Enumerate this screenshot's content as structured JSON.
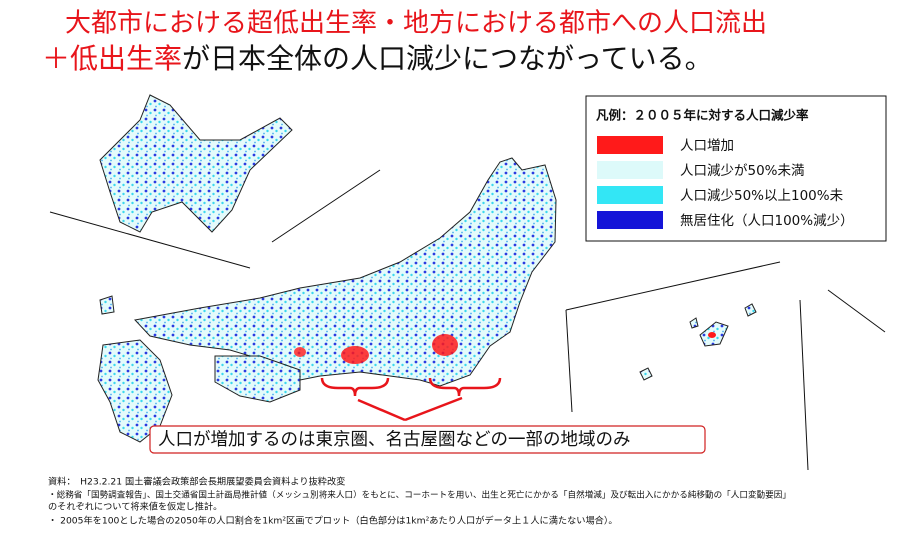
{
  "title": {
    "line1": "大都市における超低出生率・地方における都市への人口流出",
    "line2_highlight": "＋低出生率",
    "line2_rest": "が日本全体の人口減少につながっている。"
  },
  "legend": {
    "title": "凡例：２００５年に対する人口減少率",
    "items": [
      {
        "label": "人口増加",
        "color": "#ff1a1a"
      },
      {
        "label": "人口減少が50%未満",
        "color": "#ddfafa"
      },
      {
        "label": "人口減少50%以上100%未",
        "color": "#33e6f5"
      },
      {
        "label": "無居住化（人口100%減少）",
        "color": "#1515d8"
      }
    ]
  },
  "callout": "人口が増加するのは東京圏、名古屋圏などの一部の地域のみ",
  "sources": [
    "資料：　H23.2.21 国土審議会政策部会長期展望委員会資料より抜粋改変",
    "・総務省「国勢調査報告」、国土交通省国土計画局推計値（メッシュ別将来人口）をもとに、コーホートを用い、出生と死亡にかかる「自然増減」及び転出入にかかる純移動の「人口変動要因」",
    "のそれぞれについて将来値を仮定し推計。",
    "・ 2005年を100とした場合の2050年の人口割合を1km²区画でプロット（白色部分は1km²あたり人口がデータ上１人に満たない場合）。"
  ]
}
